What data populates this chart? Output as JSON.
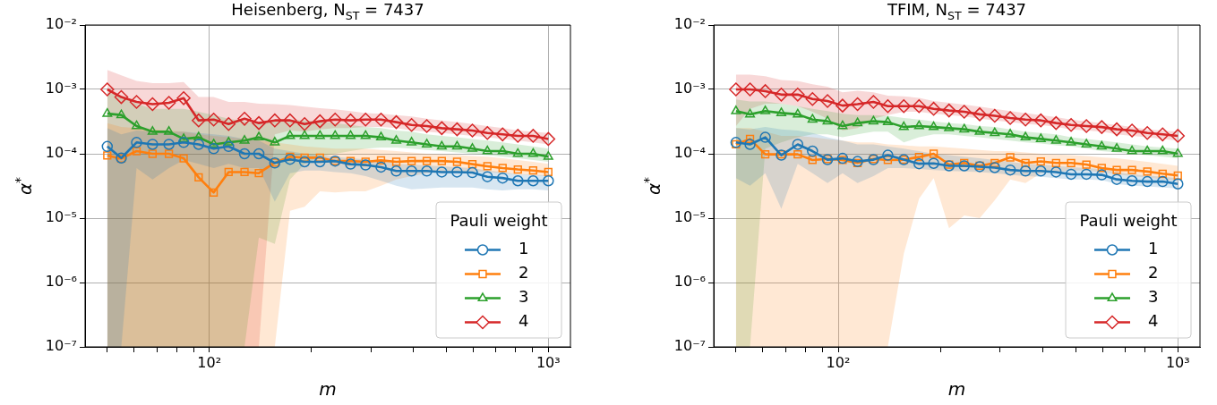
{
  "chart_data": [
    {
      "type": "line",
      "title": "Heisenberg, N$_{ST}$ = 7437",
      "xlabel": "m",
      "ylabel": "α$^{*}$",
      "legend_title": "Pauli weight",
      "legend": "bottom right",
      "grid": true,
      "log": "xy",
      "x": [
        50,
        55,
        61,
        68,
        76,
        84,
        93,
        103,
        114,
        127,
        140,
        156,
        173,
        191,
        212,
        235,
        261,
        289,
        321,
        356,
        395,
        438,
        485,
        538,
        597,
        661,
        733,
        813,
        902,
        1000
      ],
      "xlim": [
        43,
        1162
      ],
      "ylim": [
        1e-07,
        0.01
      ],
      "xticks": [
        {
          "value": 50,
          "label": null
        },
        {
          "value": 60,
          "label": null
        },
        {
          "value": 70,
          "label": null
        },
        {
          "value": 80,
          "label": null
        },
        {
          "value": 90,
          "label": null
        },
        {
          "value": 100,
          "label": "10²"
        },
        {
          "value": 200,
          "label": null
        },
        {
          "value": 300,
          "label": null
        },
        {
          "value": 400,
          "label": null
        },
        {
          "value": 500,
          "label": null
        },
        {
          "value": 600,
          "label": null
        },
        {
          "value": 700,
          "label": null
        },
        {
          "value": 800,
          "label": null
        },
        {
          "value": 900,
          "label": null
        },
        {
          "value": 1000,
          "label": "10³"
        }
      ],
      "yticks": [
        {
          "value": 1e-07,
          "label": "10⁻⁷"
        },
        {
          "value": 1e-06,
          "label": "10⁻⁶"
        },
        {
          "value": 1e-05,
          "label": "10⁻⁵"
        },
        {
          "value": 0.0001,
          "label": "10⁻⁴"
        },
        {
          "value": 0.001,
          "label": "10⁻³"
        },
        {
          "value": 0.01,
          "label": "10⁻²"
        }
      ],
      "series": [
        {
          "name": "1",
          "color": "#1f77b4",
          "marker": "circle",
          "values": [
            0.00013,
            8.6e-05,
            0.00015,
            0.00014,
            0.00014,
            0.00015,
            0.00014,
            0.00012,
            0.00013,
            0.0001,
            0.0001,
            7.2e-05,
            8.2e-05,
            7.5e-05,
            7.5e-05,
            7.7e-05,
            6.9e-05,
            6.7e-05,
            6.2e-05,
            5.4e-05,
            5.4e-05,
            5.4e-05,
            5.2e-05,
            5.2e-05,
            5.1e-05,
            4.4e-05,
            4.2e-05,
            3.8e-05,
            3.8e-05,
            3.8e-05
          ],
          "lower": [
            1e-07,
            1e-07,
            6e-05,
            4e-05,
            6e-05,
            8e-05,
            7e-05,
            6e-05,
            7e-05,
            6e-05,
            6e-05,
            1.8e-05,
            5e-05,
            5.5e-05,
            5.5e-05,
            5.2e-05,
            5e-05,
            4.5e-05,
            3.8e-05,
            3.2e-05,
            2.8e-05,
            2.9e-05,
            3e-05,
            3e-05,
            3e-05,
            2.8e-05,
            2.7e-05,
            2.8e-05,
            2.8e-05,
            2.7e-05
          ],
          "upper": [
            0.00025,
            0.0002,
            0.00023,
            0.00022,
            0.00022,
            0.00022,
            0.00021,
            0.0002,
            0.00019,
            0.00017,
            0.00016,
            0.00012,
            0.00011,
            0.0001,
            9.5e-05,
            9e-05,
            8.5e-05,
            8.2e-05,
            7.8e-05,
            7e-05,
            6.8e-05,
            6.6e-05,
            6.4e-05,
            6.2e-05,
            6e-05,
            5.5e-05,
            5.2e-05,
            4.8e-05,
            4.7e-05,
            4.6e-05
          ]
        },
        {
          "name": "2",
          "color": "#ff7f0e",
          "marker": "square",
          "values": [
            9.4e-05,
            8.4e-05,
            0.00011,
            0.0001,
            0.0001,
            8.5e-05,
            4.3e-05,
            2.5e-05,
            5.2e-05,
            5.2e-05,
            5e-05,
            7.3e-05,
            9e-05,
            8.7e-05,
            8.7e-05,
            7.7e-05,
            7.7e-05,
            7.5e-05,
            7.9e-05,
            7.5e-05,
            7.7e-05,
            7.7e-05,
            7.7e-05,
            7.5e-05,
            6.9e-05,
            6.4e-05,
            6e-05,
            5.7e-05,
            5.5e-05,
            5.2e-05
          ],
          "lower": [
            1e-07,
            1e-07,
            1e-07,
            1e-07,
            1e-07,
            1e-07,
            1e-07,
            1e-07,
            1e-07,
            1e-07,
            1e-07,
            1e-07,
            1.3e-05,
            1.5e-05,
            2.6e-05,
            2.5e-05,
            2.6e-05,
            2.6e-05,
            3.2e-05,
            4e-05,
            4.5e-05,
            5e-05,
            5.2e-05,
            5.3e-05,
            5.3e-05,
            5.2e-05,
            5e-05,
            4.8e-05,
            4.6e-05,
            4.5e-05
          ],
          "upper": [
            0.0003,
            0.00026,
            0.00025,
            0.00024,
            0.00023,
            0.00022,
            0.0002,
            0.00019,
            0.00018,
            0.00017,
            0.00016,
            0.00015,
            0.00014,
            0.00013,
            0.000125,
            0.00012,
            0.00012,
            0.00012,
            0.000115,
            0.00011,
            0.000105,
            0.0001,
            9.8e-05,
            9.5e-05,
            9.2e-05,
            9e-05,
            8.5e-05,
            8e-05,
            7.5e-05,
            7e-05
          ]
        },
        {
          "name": "3",
          "color": "#2ca02c",
          "marker": "triangle",
          "values": [
            0.00042,
            0.0004,
            0.00027,
            0.00022,
            0.00022,
            0.00017,
            0.00018,
            0.00014,
            0.00015,
            0.00016,
            0.00018,
            0.00015,
            0.00019,
            0.00019,
            0.00019,
            0.00019,
            0.00019,
            0.00019,
            0.00018,
            0.00016,
            0.00015,
            0.00014,
            0.00013,
            0.00013,
            0.00012,
            0.00011,
            0.00011,
            0.0001,
            0.0001,
            9e-05
          ],
          "lower": [
            1e-07,
            1e-07,
            1e-07,
            1e-07,
            1e-07,
            1e-07,
            1e-07,
            1e-07,
            1e-07,
            1e-07,
            5e-06,
            4e-06,
            4e-05,
            7e-05,
            9e-05,
            0.0001,
            0.00011,
            0.00012,
            0.000125,
            0.000125,
            0.00012,
            0.000115,
            0.00011,
            0.000105,
            0.0001,
            9.5e-05,
            9e-05,
            8.5e-05,
            8e-05,
            7.5e-05
          ],
          "upper": [
            0.0009,
            0.0008,
            0.0006,
            0.0005,
            0.0005,
            0.0005,
            0.00045,
            0.0004,
            0.00035,
            0.00032,
            0.0003,
            0.00032,
            0.00034,
            0.00033,
            0.00032,
            0.0003,
            0.00028,
            0.00026,
            0.00025,
            0.00023,
            0.00022,
            0.0002,
            0.00019,
            0.00018,
            0.00017,
            0.00016,
            0.00015,
            0.00014,
            0.00013,
            0.00012
          ]
        },
        {
          "name": "4",
          "color": "#d62728",
          "marker": "diamond",
          "values": [
            0.001,
            0.00076,
            0.00064,
            0.00059,
            0.00062,
            0.00073,
            0.00033,
            0.00034,
            0.00029,
            0.00035,
            0.0003,
            0.00033,
            0.00033,
            0.00029,
            0.00032,
            0.00034,
            0.00033,
            0.00034,
            0.00034,
            0.00031,
            0.00028,
            0.00027,
            0.00025,
            0.00024,
            0.00023,
            0.00021,
            0.0002,
            0.00019,
            0.00019,
            0.00017
          ],
          "lower": [
            1e-07,
            1e-07,
            1e-07,
            1e-07,
            1e-07,
            1e-07,
            1e-07,
            1e-07,
            1e-07,
            1e-07,
            1e-07,
            0.0002,
            0.00023,
            0.00022,
            0.00024,
            0.00025,
            0.00025,
            0.00026,
            0.00026,
            0.00025,
            0.00023,
            0.00022,
            0.00021,
            0.0002,
            0.00019,
            0.00018,
            0.00017,
            0.00016,
            0.00015,
            0.00014
          ],
          "upper": [
            0.002,
            0.00165,
            0.00135,
            0.00125,
            0.00125,
            0.0013,
            0.00076,
            0.00076,
            0.00064,
            0.00064,
            0.0006,
            0.00059,
            0.00057,
            0.00054,
            0.00051,
            0.00049,
            0.00046,
            0.00043,
            0.00042,
            0.0004,
            0.00038,
            0.00035,
            0.00033,
            0.00031,
            0.00029,
            0.00027,
            0.00025,
            0.00023,
            0.00022,
            0.00021
          ]
        }
      ]
    },
    {
      "type": "line",
      "title": "TFIM, N$_{ST}$ = 7437",
      "xlabel": "m",
      "ylabel": "α$^{*}$",
      "legend_title": "Pauli weight",
      "legend": "bottom right",
      "grid": true,
      "log": "xy",
      "x": [
        50,
        55,
        61,
        68,
        76,
        84,
        93,
        103,
        114,
        127,
        140,
        156,
        173,
        191,
        212,
        235,
        261,
        289,
        321,
        356,
        395,
        438,
        485,
        538,
        597,
        661,
        733,
        813,
        902,
        1000
      ],
      "xlim": [
        43,
        1162
      ],
      "ylim": [
        1e-07,
        0.01
      ],
      "xticks": [
        {
          "value": 50,
          "label": null
        },
        {
          "value": 60,
          "label": null
        },
        {
          "value": 70,
          "label": null
        },
        {
          "value": 80,
          "label": null
        },
        {
          "value": 90,
          "label": null
        },
        {
          "value": 100,
          "label": "10²"
        },
        {
          "value": 200,
          "label": null
        },
        {
          "value": 300,
          "label": null
        },
        {
          "value": 400,
          "label": null
        },
        {
          "value": 500,
          "label": null
        },
        {
          "value": 600,
          "label": null
        },
        {
          "value": 700,
          "label": null
        },
        {
          "value": 800,
          "label": null
        },
        {
          "value": 900,
          "label": null
        },
        {
          "value": 1000,
          "label": "10³"
        }
      ],
      "yticks": [
        {
          "value": 1e-07,
          "label": "10⁻⁷"
        },
        {
          "value": 1e-06,
          "label": "10⁻⁶"
        },
        {
          "value": 1e-05,
          "label": "10⁻⁵"
        },
        {
          "value": 0.0001,
          "label": "10⁻⁴"
        },
        {
          "value": 0.001,
          "label": "10⁻³"
        },
        {
          "value": 0.01,
          "label": "10⁻²"
        }
      ],
      "series": [
        {
          "name": "1",
          "color": "#1f77b4",
          "marker": "circle",
          "values": [
            0.00015,
            0.00014,
            0.00018,
            9.5e-05,
            0.00014,
            0.00011,
            8.1e-05,
            8.5e-05,
            7.6e-05,
            8.1e-05,
            9.5e-05,
            8.1e-05,
            7e-05,
            7.1e-05,
            6.5e-05,
            6.5e-05,
            6.3e-05,
            6.1e-05,
            5.6e-05,
            5.4e-05,
            5.4e-05,
            5.2e-05,
            4.8e-05,
            4.8e-05,
            4.7e-05,
            4e-05,
            3.8e-05,
            3.7e-05,
            3.7e-05,
            3.4e-05
          ],
          "lower": [
            4.2e-05,
            3.2e-05,
            5e-05,
            1.4e-05,
            7e-05,
            5e-05,
            3.5e-05,
            5e-05,
            3.5e-05,
            4.5e-05,
            6e-05,
            6e-05,
            5.8e-05,
            5.6e-05,
            5.4e-05,
            5.3e-05,
            5.2e-05,
            5e-05,
            4.7e-05,
            4.5e-05,
            4.4e-05,
            4.2e-05,
            4e-05,
            4e-05,
            3.9e-05,
            3.4e-05,
            3.2e-05,
            3.1e-05,
            3e-05,
            2.9e-05
          ],
          "upper": [
            0.00025,
            0.00024,
            0.00026,
            0.00024,
            0.00023,
            0.00021,
            0.00018,
            0.00016,
            0.00014,
            0.00014,
            0.00013,
            0.00012,
            0.00011,
            0.0001,
            9.5e-05,
            9e-05,
            8.5e-05,
            8e-05,
            7.5e-05,
            7e-05,
            6.8e-05,
            6.5e-05,
            6.2e-05,
            6e-05,
            5.8e-05,
            5.2e-05,
            4.8e-05,
            4.6e-05,
            4.4e-05,
            4.2e-05
          ]
        },
        {
          "name": "2",
          "color": "#ff7f0e",
          "marker": "square",
          "values": [
            0.00014,
            0.00017,
            9.8e-05,
            9.8e-05,
            9.8e-05,
            8e-05,
            8.3e-05,
            8e-05,
            7.2e-05,
            8.3e-05,
            8e-05,
            8.1e-05,
            8.9e-05,
            0.0001,
            6.8e-05,
            7.2e-05,
            6.5e-05,
            7.2e-05,
            8.8e-05,
            7.2e-05,
            7.6e-05,
            7.2e-05,
            7.2e-05,
            6.8e-05,
            6e-05,
            5.6e-05,
            5.6e-05,
            5.3e-05,
            4.9e-05,
            4.6e-05
          ],
          "lower": [
            1e-07,
            1e-07,
            1e-07,
            1e-07,
            1e-07,
            1e-07,
            1e-07,
            1e-07,
            1e-07,
            1e-07,
            1e-07,
            2.8e-06,
            2e-05,
            4.2e-05,
            7e-06,
            1.1e-05,
            1e-05,
            1.9e-05,
            4e-05,
            3.5e-05,
            5e-05,
            5.2e-05,
            5.5e-05,
            5.5e-05,
            5.2e-05,
            4.8e-05,
            4.5e-05,
            4.3e-05,
            4e-05,
            3.8e-05
          ],
          "upper": [
            0.00025,
            0.00025,
            0.00022,
            0.00019,
            0.00019,
            0.00018,
            0.00017,
            0.00016,
            0.00015,
            0.00015,
            0.00014,
            0.000135,
            0.00013,
            0.00013,
            0.000125,
            0.00012,
            0.000115,
            0.00011,
            0.00011,
            0.000105,
            0.0001,
            9.8e-05,
            9.5e-05,
            9.2e-05,
            8.8e-05,
            8.5e-05,
            8e-05,
            7.5e-05,
            7e-05,
            6.5e-05
          ]
        },
        {
          "name": "3",
          "color": "#2ca02c",
          "marker": "triangle",
          "values": [
            0.00046,
            0.00041,
            0.00046,
            0.00043,
            0.00041,
            0.00034,
            0.00032,
            0.00027,
            0.0003,
            0.00032,
            0.00031,
            0.00026,
            0.00027,
            0.00026,
            0.00025,
            0.00024,
            0.00022,
            0.00021,
            0.0002,
            0.00018,
            0.00017,
            0.00016,
            0.00015,
            0.00014,
            0.00013,
            0.00012,
            0.00011,
            0.00011,
            0.00011,
            0.0001
          ],
          "lower": [
            1e-07,
            1e-07,
            0.00012,
            0.00015,
            0.00018,
            0.0002,
            0.0002,
            0.00018,
            0.0002,
            0.00022,
            0.00022,
            0.00015,
            0.00018,
            0.0002,
            0.0002,
            0.00019,
            0.00018,
            0.00017,
            0.00016,
            0.00015,
            0.000145,
            0.000135,
            0.00013,
            0.00012,
            0.00011,
            0.000105,
            0.0001,
            9.5e-05,
            9e-05,
            8.5e-05
          ],
          "upper": [
            0.0007,
            0.00065,
            0.00065,
            0.0006,
            0.00055,
            0.0005,
            0.00046,
            0.00042,
            0.0004,
            0.0004,
            0.00039,
            0.00036,
            0.00034,
            0.00032,
            0.0003,
            0.00029,
            0.00027,
            0.00026,
            0.00024,
            0.00022,
            0.00021,
            0.0002,
            0.00018,
            0.00017,
            0.00016,
            0.00015,
            0.00014,
            0.00013,
            0.000125,
            0.00012
          ]
        },
        {
          "name": "4",
          "color": "#d62728",
          "marker": "diamond",
          "values": [
            0.001,
            0.001,
            0.00094,
            0.00083,
            0.00083,
            0.00071,
            0.00066,
            0.00056,
            0.00059,
            0.00064,
            0.00055,
            0.00055,
            0.00055,
            0.0005,
            0.00047,
            0.00045,
            0.00041,
            0.00039,
            0.00036,
            0.00034,
            0.00033,
            0.0003,
            0.00028,
            0.00027,
            0.00026,
            0.00024,
            0.00023,
            0.00021,
            0.0002,
            0.00019
          ],
          "lower": [
            0.00027,
            0.0005,
            0.0006,
            0.0006,
            0.00055,
            0.00045,
            0.00035,
            0.00023,
            0.00025,
            0.00035,
            0.0004,
            0.00045,
            0.00045,
            0.00042,
            0.0004,
            0.00038,
            0.00035,
            0.00033,
            0.00031,
            0.00029,
            0.00028,
            0.00026,
            0.00024,
            0.00023,
            0.00022,
            0.0002,
            0.00019,
            0.00018,
            0.00017,
            0.00016
          ],
          "upper": [
            0.0017,
            0.0017,
            0.0016,
            0.0014,
            0.00135,
            0.0012,
            0.0011,
            0.0009,
            0.00095,
            0.0009,
            0.0008,
            0.00078,
            0.00074,
            0.00066,
            0.00062,
            0.00058,
            0.00054,
            0.0005,
            0.00046,
            0.00043,
            0.0004,
            0.00037,
            0.00034,
            0.00032,
            0.0003,
            0.00028,
            0.00026,
            0.00024,
            0.00023,
            0.00022
          ]
        }
      ]
    }
  ]
}
